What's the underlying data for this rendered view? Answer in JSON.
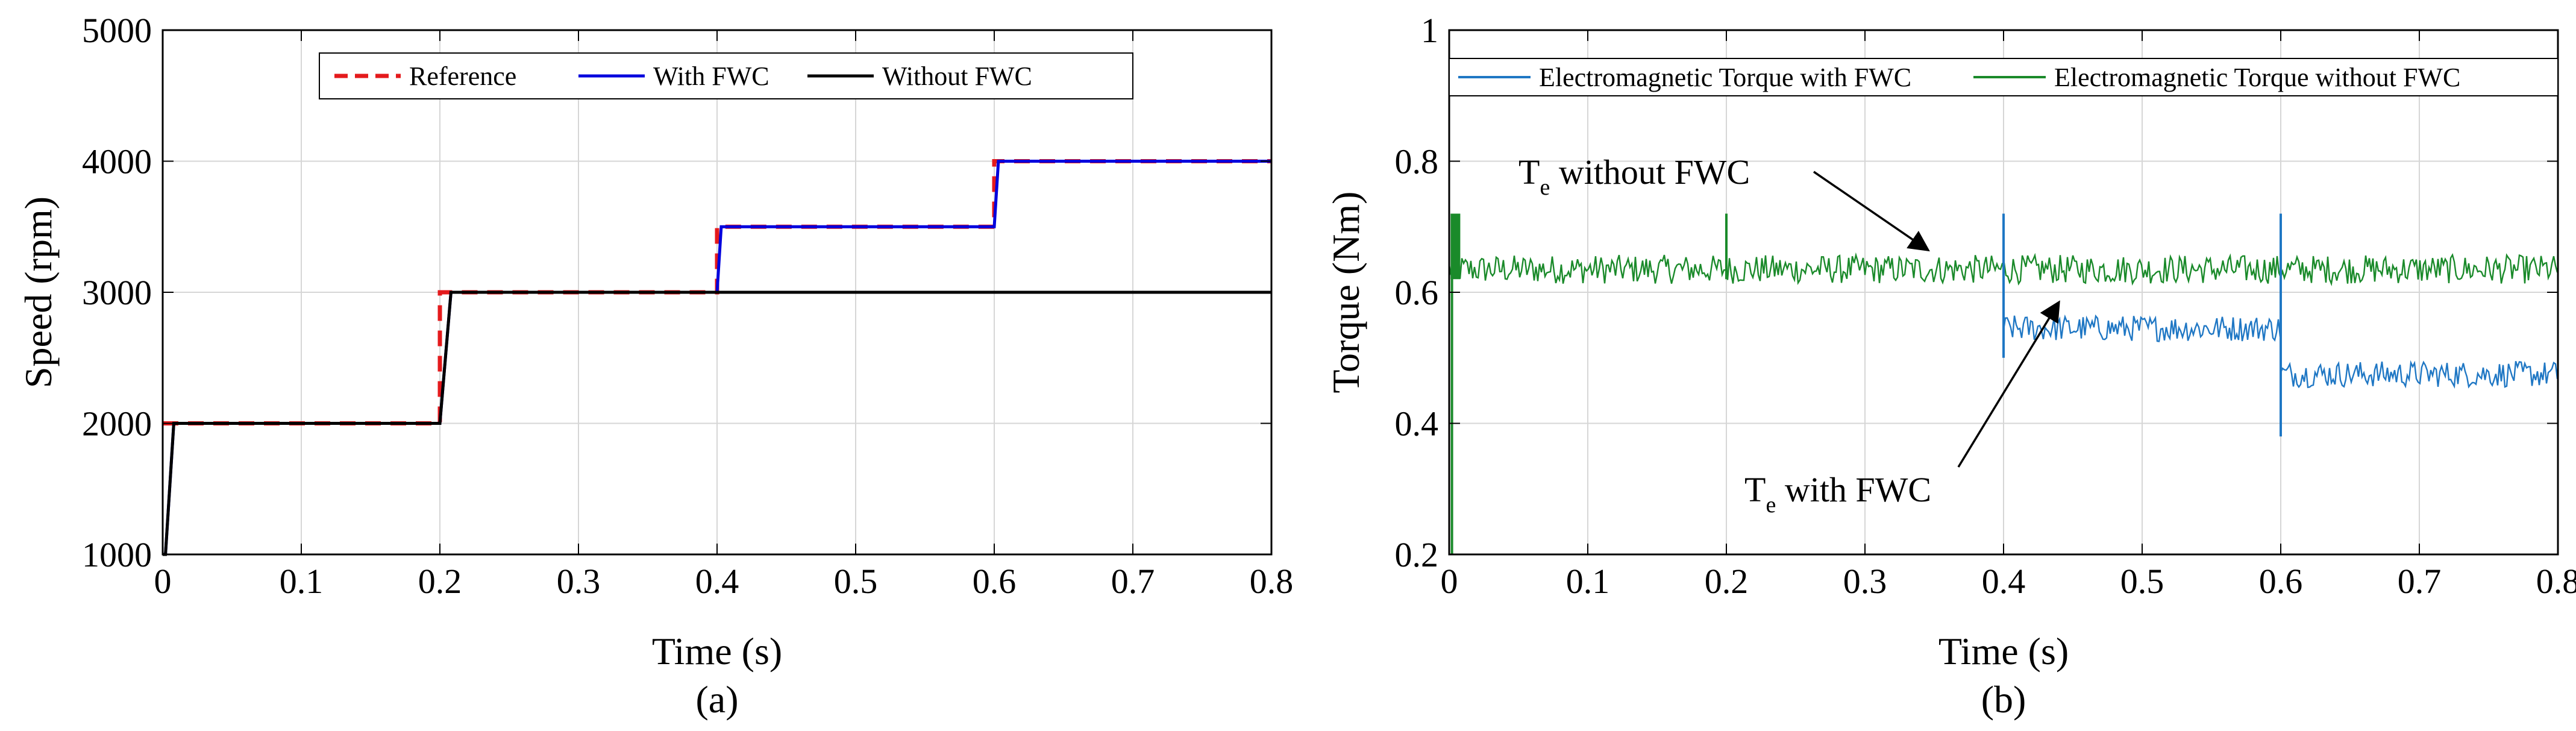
{
  "chart_data": [
    {
      "id": "a",
      "type": "line",
      "caption": "(a)",
      "xlabel": "Time (s)",
      "ylabel": "Speed (rpm)",
      "xlim": [
        0,
        0.8
      ],
      "ylim": [
        1000,
        5000
      ],
      "xticks": [
        0,
        0.1,
        0.2,
        0.3,
        0.4,
        0.5,
        0.6,
        0.7,
        0.8
      ],
      "yticks": [
        1000,
        2000,
        3000,
        4000,
        5000
      ],
      "grid": true,
      "legend_position": "top-right",
      "series": [
        {
          "name": "Reference",
          "color": "#e41a1c",
          "style": "dashed",
          "x": [
            0,
            0.2,
            0.2,
            0.4,
            0.4,
            0.6,
            0.6,
            0.8
          ],
          "y": [
            2000,
            2000,
            3000,
            3000,
            3500,
            3500,
            4000,
            4000
          ]
        },
        {
          "name": "With FWC",
          "color": "#0000dd",
          "style": "solid",
          "x": [
            0,
            0.002,
            0.008,
            0.2,
            0.208,
            0.4,
            0.403,
            0.6,
            0.603,
            0.8
          ],
          "y": [
            1000,
            1000,
            2000,
            2000,
            3000,
            3000,
            3500,
            3500,
            4000,
            4000
          ]
        },
        {
          "name": "Without FWC",
          "color": "#000000",
          "style": "solid",
          "x": [
            0,
            0.002,
            0.008,
            0.2,
            0.208,
            0.8
          ],
          "y": [
            1000,
            1000,
            2000,
            2000,
            3000,
            3000
          ]
        }
      ]
    },
    {
      "id": "b",
      "type": "line",
      "caption": "(b)",
      "xlabel": "Time (s)",
      "ylabel": "Torque (Nm)",
      "xlim": [
        0,
        0.8
      ],
      "ylim": [
        0.2,
        1.0
      ],
      "xticks": [
        0,
        0.1,
        0.2,
        0.3,
        0.4,
        0.5,
        0.6,
        0.7,
        0.8
      ],
      "yticks": [
        0.2,
        0.4,
        0.6,
        0.8,
        1
      ],
      "grid": true,
      "legend_position": "top",
      "series": [
        {
          "name": "Electromagnetic Torque with FWC",
          "color": "#1f77c4",
          "style": "solid",
          "segments": [
            {
              "x_start": 0.4,
              "x_end": 0.6,
              "mean": 0.545,
              "ripple": 0.02
            },
            {
              "x_start": 0.6,
              "x_end": 0.8,
              "mean": 0.475,
              "ripple": 0.02
            }
          ],
          "spikes": [
            {
              "x": 0.4,
              "y_max": 0.72,
              "y_min": 0.5
            },
            {
              "x": 0.6,
              "y_max": 0.72,
              "y_min": 0.38
            }
          ]
        },
        {
          "name": "Electromagnetic Torque without FWC",
          "color": "#1a8a2a",
          "style": "solid",
          "segments": [
            {
              "x_start": 0.0,
              "x_end": 0.8,
              "mean": 0.635,
              "ripple": 0.022
            }
          ],
          "spikes": [
            {
              "x": 0.002,
              "y_max": 0.72,
              "y_min": 0.2
            },
            {
              "x": 0.2,
              "y_max": 0.72,
              "y_min": 0.62
            }
          ]
        }
      ],
      "annotations": [
        {
          "main": "T",
          "sub": "e",
          "rest": " without FWC",
          "target_x": 0.35,
          "target_y": 0.655
        },
        {
          "main": "T",
          "sub": "e",
          "rest": " with FWC",
          "target_x": 0.44,
          "target_y": 0.585
        }
      ]
    }
  ]
}
